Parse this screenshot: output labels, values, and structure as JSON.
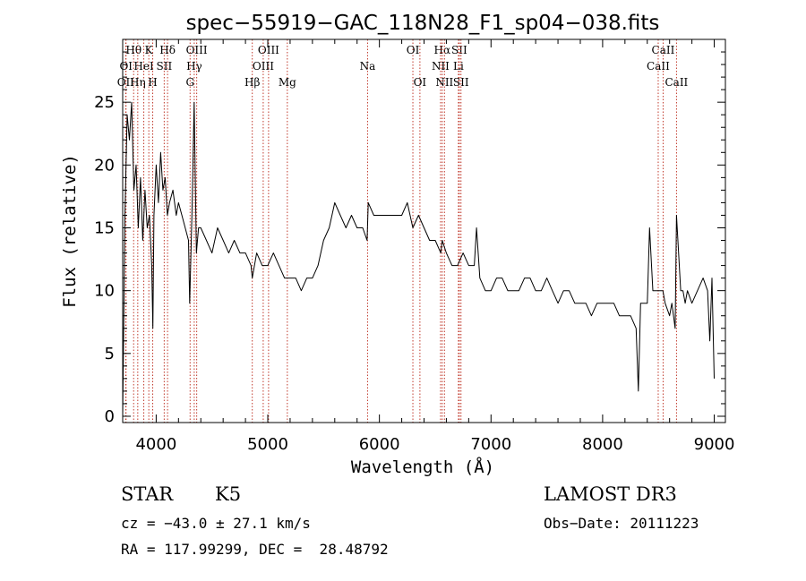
{
  "chart_data": {
    "type": "line",
    "title": "spec−55919−GAC_118N28_F1_sp04−038.fits",
    "xlabel": "Wavelength (Å)",
    "ylabel": "Flux (relative)",
    "xlim": [
      3700,
      9100
    ],
    "ylim": [
      -0.5,
      30
    ],
    "xticks": [
      4000,
      5000,
      6000,
      7000,
      8000,
      9000
    ],
    "yticks": [
      0,
      5,
      10,
      15,
      20,
      25
    ],
    "grid": false,
    "series": [
      {
        "x": [
          3700,
          3720,
          3740,
          3760,
          3780,
          3800,
          3820,
          3840,
          3860,
          3880,
          3900,
          3920,
          3940,
          3960,
          3970,
          3980,
          4000,
          4020,
          4040,
          4060,
          4080,
          4100,
          4120,
          4150,
          4180,
          4200,
          4230,
          4260,
          4290,
          4300,
          4320,
          4340,
          4360,
          4380,
          4400,
          4450,
          4500,
          4550,
          4600,
          4650,
          4700,
          4750,
          4800,
          4850,
          4861,
          4900,
          4950,
          5000,
          5050,
          5100,
          5150,
          5200,
          5250,
          5300,
          5350,
          5400,
          5450,
          5500,
          5550,
          5600,
          5650,
          5700,
          5750,
          5800,
          5850,
          5890,
          5900,
          5950,
          6000,
          6050,
          6100,
          6150,
          6200,
          6250,
          6300,
          6350,
          6400,
          6450,
          6500,
          6550,
          6563,
          6600,
          6650,
          6700,
          6750,
          6800,
          6850,
          6870,
          6900,
          6950,
          7000,
          7050,
          7100,
          7150,
          7200,
          7250,
          7300,
          7350,
          7400,
          7450,
          7500,
          7550,
          7600,
          7650,
          7700,
          7750,
          7800,
          7850,
          7900,
          7950,
          8000,
          8050,
          8100,
          8150,
          8200,
          8250,
          8300,
          8320,
          8340,
          8400,
          8420,
          8450,
          8500,
          8540,
          8560,
          8600,
          8620,
          8650,
          8662,
          8700,
          8720,
          8740,
          8760,
          8800,
          8850,
          8900,
          8940,
          8960,
          8980,
          9000
        ],
        "y": [
          0,
          16,
          24,
          22,
          25,
          18,
          20,
          15,
          19,
          14,
          18,
          15,
          16,
          12,
          7,
          16,
          20,
          17,
          21,
          18,
          19,
          16,
          17,
          18,
          16,
          17,
          16,
          15,
          14,
          9,
          16,
          25,
          13,
          15,
          15,
          14,
          13,
          15,
          14,
          13,
          14,
          13,
          13,
          12,
          11,
          13,
          12,
          12,
          13,
          12,
          11,
          11,
          11,
          10,
          11,
          11,
          12,
          14,
          15,
          17,
          16,
          15,
          16,
          15,
          15,
          14,
          17,
          16,
          16,
          16,
          16,
          16,
          16,
          17,
          15,
          16,
          15,
          14,
          14,
          13,
          14,
          13,
          12,
          12,
          13,
          12,
          12,
          15,
          11,
          10,
          10,
          11,
          11,
          10,
          10,
          10,
          11,
          11,
          10,
          10,
          11,
          10,
          9,
          10,
          10,
          9,
          9,
          9,
          8,
          9,
          9,
          9,
          9,
          8,
          8,
          8,
          7,
          2,
          9,
          9,
          15,
          10,
          10,
          10,
          9,
          8,
          9,
          7,
          16,
          10,
          10,
          9,
          10,
          9,
          10,
          11,
          10,
          6,
          11,
          3
        ]
      }
    ],
    "lines": [
      {
        "label": "Hθ",
        "x": 3798,
        "row": 0
      },
      {
        "label": "OI",
        "x": 3730,
        "row": 1
      },
      {
        "label": "OII",
        "x": 3727,
        "row": 2
      },
      {
        "label": "K",
        "x": 3934,
        "row": 0
      },
      {
        "label": "HeI",
        "x": 3889,
        "row": 1
      },
      {
        "label": "Hη",
        "x": 3835,
        "row": 2
      },
      {
        "label": "Hδ",
        "x": 4102,
        "row": 0
      },
      {
        "label": "SII",
        "x": 4072,
        "row": 1
      },
      {
        "label": "H",
        "x": 3969,
        "row": 2
      },
      {
        "label": "OIII",
        "x": 4363,
        "row": 0
      },
      {
        "label": "Hγ",
        "x": 4341,
        "row": 1
      },
      {
        "label": "G",
        "x": 4304,
        "row": 2
      },
      {
        "label": "OIII",
        "x": 5007,
        "row": 0
      },
      {
        "label": "OIII",
        "x": 4959,
        "row": 1
      },
      {
        "label": "Hβ",
        "x": 4861,
        "row": 2
      },
      {
        "label": "Mg",
        "x": 5175,
        "row": 2
      },
      {
        "label": "Na",
        "x": 5894,
        "row": 1
      },
      {
        "label": "OI",
        "x": 6300,
        "row": 0
      },
      {
        "label": "OI",
        "x": 6363,
        "row": 2
      },
      {
        "label": "Hα",
        "x": 6563,
        "row": 0
      },
      {
        "label": "NII",
        "x": 6548,
        "row": 1
      },
      {
        "label": "NII",
        "x": 6583,
        "row": 2
      },
      {
        "label": "SII",
        "x": 6716,
        "row": 0
      },
      {
        "label": "Li",
        "x": 6708,
        "row": 1
      },
      {
        "label": "SII",
        "x": 6731,
        "row": 2
      },
      {
        "label": "CaII",
        "x": 8542,
        "row": 0
      },
      {
        "label": "CaII",
        "x": 8498,
        "row": 1
      },
      {
        "label": "CaII",
        "x": 8662,
        "row": 2
      }
    ]
  },
  "info": {
    "star_class": "STAR",
    "subclass": "K5",
    "survey": "LAMOST DR3",
    "cz": "cz = −43.0 ± 27.1 km/s",
    "obs_date": "Obs−Date: 20111223",
    "radec": "RA = 117.99299, DEC =  28.48792"
  },
  "colors": {
    "foreground": "#000000",
    "line_marker": "#c0392b"
  }
}
